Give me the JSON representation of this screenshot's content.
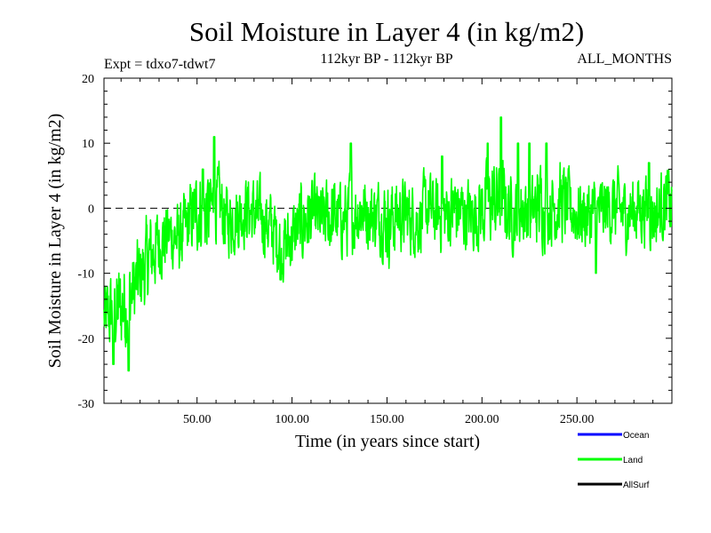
{
  "chart_data": {
    "type": "line",
    "title": "Soil Moisture in Layer 4 (in kg/m2)",
    "subtitle": "112kyr BP - 112kyr BP",
    "experiment_label": "Expt = tdxo7-tdwt7",
    "period_label": "ALL_MONTHS",
    "xlabel": "Time (in years since start)",
    "ylabel": "Soil Moisture in Layer 4 (in kg/m2)",
    "xlim": [
      1,
      300
    ],
    "ylim": [
      -30,
      20
    ],
    "x_ticks": [
      50,
      100,
      150,
      200,
      250
    ],
    "x_tick_labels": [
      "50.00",
      "100.00",
      "150.00",
      "200.00",
      "250.00"
    ],
    "y_ticks": [
      -30,
      -20,
      -10,
      0,
      10,
      20
    ],
    "y_tick_labels": [
      "-30",
      "-20",
      "-10",
      "0",
      "10",
      "20"
    ],
    "reference_line": 0,
    "grid": false,
    "legend_position": "bottom-right",
    "legend": [
      {
        "name": "Ocean",
        "color": "#0000ff"
      },
      {
        "name": "Land",
        "color": "#00ff00"
      },
      {
        "name": "AllSurf",
        "color": "#000000"
      }
    ],
    "series": [
      {
        "name": "Land",
        "color": "#00ff00",
        "x": [
          1,
          6,
          11,
          16,
          21,
          26,
          31,
          36,
          41,
          46,
          51,
          56,
          61,
          66,
          71,
          76,
          81,
          86,
          91,
          96,
          101,
          106,
          111,
          116,
          121,
          126,
          131,
          136,
          141,
          146,
          151,
          156,
          161,
          166,
          171,
          176,
          181,
          186,
          191,
          196,
          201,
          206,
          211,
          216,
          221,
          226,
          231,
          236,
          241,
          246,
          251,
          256,
          261,
          266,
          271,
          276,
          281,
          286,
          291,
          296,
          300
        ],
        "y": [
          -17,
          -16,
          -15,
          -13,
          -10,
          -7,
          -5,
          -4,
          -5,
          -2,
          0,
          -1,
          1,
          -2,
          -1,
          0,
          -1,
          -2,
          -4,
          -6,
          -4,
          -2,
          -1,
          -2,
          -1,
          -2,
          -1,
          0,
          -1,
          -1,
          -2,
          -1,
          -1,
          -2,
          0,
          -1,
          -1,
          0,
          -1,
          -1,
          0,
          1,
          1,
          -1,
          0,
          -1,
          1,
          0,
          1,
          0,
          -1,
          -1,
          -1,
          0,
          0,
          -1,
          0,
          0,
          -1,
          1,
          0
        ],
        "noise": [
          5,
          6,
          7,
          6,
          6,
          6,
          5,
          5,
          5,
          5,
          6,
          6,
          5,
          5,
          5,
          5,
          5,
          5,
          5,
          5,
          5,
          6,
          5,
          5,
          6,
          5,
          6,
          5,
          5,
          5,
          6,
          5,
          5,
          5,
          5,
          5,
          5,
          6,
          5,
          5,
          6,
          6,
          6,
          5,
          5,
          5,
          6,
          5,
          6,
          5,
          5,
          5,
          5,
          5,
          5,
          5,
          5,
          5,
          5,
          5,
          5
        ],
        "extremes": [
          [
            6,
            -24
          ],
          [
            14,
            -25
          ],
          [
            53,
            6
          ],
          [
            59,
            11
          ],
          [
            94,
            -11
          ],
          [
            131,
            10
          ],
          [
            179,
            8
          ],
          [
            203,
            10
          ],
          [
            210,
            14
          ],
          [
            219,
            10
          ],
          [
            225,
            10
          ],
          [
            234,
            10
          ],
          [
            260,
            -10
          ],
          [
            288,
            7
          ]
        ]
      },
      {
        "name": "Ocean",
        "color": "#0000ff",
        "x": [],
        "y": []
      },
      {
        "name": "AllSurf",
        "color": "#000000",
        "x": [],
        "y": []
      }
    ]
  }
}
